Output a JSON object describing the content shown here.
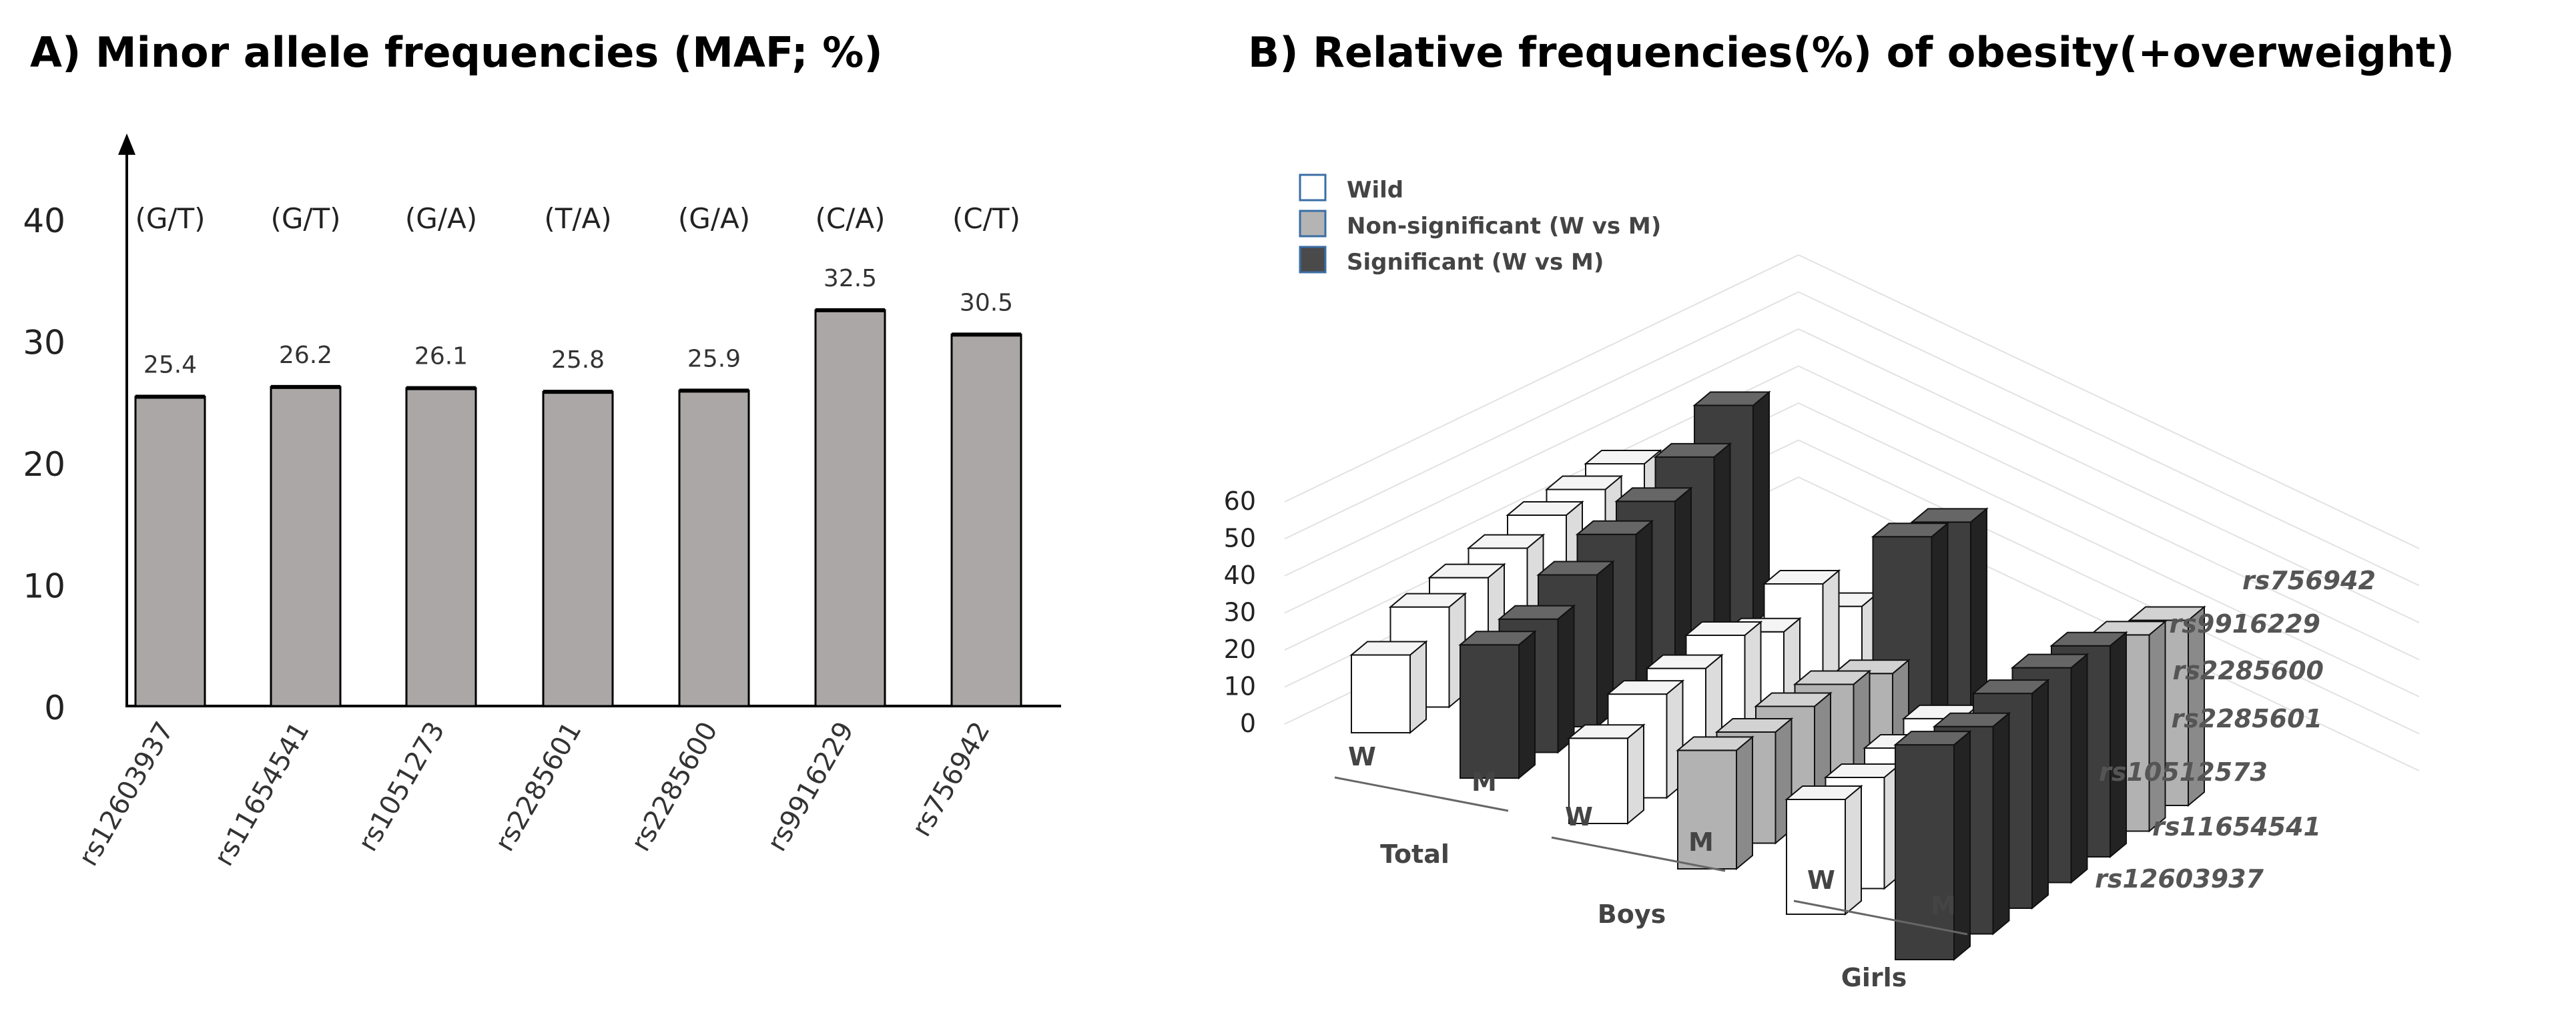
{
  "chart_data": [
    {
      "type": "bar",
      "title": "A) Minor allele frequencies (MAF; %)",
      "categories": [
        "rs12603937",
        "rs11654541",
        "rs1051273",
        "rs2285601",
        "rs2285600",
        "rs9916229",
        "rs756942"
      ],
      "allele_labels": [
        "(G/T)",
        "(G/T)",
        "(G/A)",
        "(T/A)",
        "(G/A)",
        "(C/A)",
        "(C/T)"
      ],
      "values": [
        25.4,
        26.2,
        26.1,
        25.8,
        25.9,
        32.5,
        30.5
      ],
      "value_labels": [
        "25.4",
        "26.2",
        "26.1",
        "25.8",
        "25.9",
        "32.5",
        "30.5"
      ],
      "yticks": [
        "0",
        "10",
        "20",
        "30",
        "40"
      ],
      "ylim": [
        0,
        40
      ],
      "bar_color": "#aba7a6"
    },
    {
      "type": "bar",
      "subtype": "3d-bar",
      "title": "B) Relative frequencies(%) of obesity(+overweight)",
      "legend": [
        {
          "label": "Wild",
          "color": "#ffffff"
        },
        {
          "label": "Non-significant (W vs M)",
          "color": "#b4b4b4"
        },
        {
          "label": "Significant (W vs M)",
          "color": "#4a4a4a"
        }
      ],
      "legend_placement": "top-left",
      "zticks": [
        "0",
        "10",
        "20",
        "30",
        "40",
        "50",
        "60"
      ],
      "zlim": [
        0,
        60
      ],
      "groups": [
        "Total",
        "Boys",
        "Girls"
      ],
      "genotypes": [
        "W",
        "M"
      ],
      "snps": [
        "rs12603937",
        "rs11654541",
        "rs10512573",
        "rs2285601",
        "rs2285600",
        "rs9916229",
        "rs756942"
      ],
      "status": [
        [
          "W",
          "S",
          "W",
          "N",
          "W",
          "S"
        ],
        [
          "W",
          "S",
          "W",
          "N",
          "W",
          "S"
        ],
        [
          "W",
          "S",
          "W",
          "N",
          "W",
          "S"
        ],
        [
          "W",
          "S",
          "W",
          "N",
          "W",
          "S"
        ],
        [
          "W",
          "S",
          "W",
          "N",
          "W",
          "S"
        ],
        [
          "W",
          "S",
          "W",
          "S",
          "W",
          "N"
        ],
        [
          "W",
          "S",
          "W",
          "S",
          "W",
          "N"
        ]
      ],
      "values": [
        [
          21,
          36,
          23,
          32,
          31,
          58
        ],
        [
          27,
          36,
          28,
          30,
          30,
          56
        ],
        [
          28,
          41,
          28,
          30,
          31,
          58
        ],
        [
          29,
          45,
          30,
          29,
          32,
          58
        ],
        [
          31,
          47,
          24,
          25,
          14,
          57
        ],
        [
          31,
          52,
          30,
          55,
          21,
          53
        ],
        [
          31,
          59,
          17,
          52,
          14,
          50
        ]
      ]
    }
  ]
}
